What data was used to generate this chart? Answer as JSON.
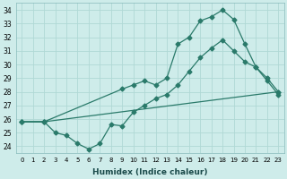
{
  "xlabel": "Humidex (Indice chaleur)",
  "bg_color": "#ceecea",
  "grid_color": "#b0d8d5",
  "line_color": "#2a7a6a",
  "xlim": [
    -0.5,
    23.5
  ],
  "ylim": [
    23.5,
    34.5
  ],
  "yticks": [
    24,
    25,
    26,
    27,
    28,
    29,
    30,
    31,
    32,
    33,
    34
  ],
  "xticks": [
    0,
    1,
    2,
    3,
    4,
    5,
    6,
    7,
    8,
    9,
    10,
    11,
    12,
    13,
    14,
    15,
    16,
    17,
    18,
    19,
    20,
    21,
    22,
    23
  ],
  "line1_x": [
    0,
    2,
    9,
    10,
    11,
    12,
    13,
    14,
    15,
    16,
    17,
    18,
    19,
    20,
    21,
    22,
    23
  ],
  "line1_y": [
    25.8,
    25.8,
    28.2,
    28.5,
    28.8,
    28.5,
    29.0,
    31.5,
    32.0,
    33.2,
    33.5,
    34.0,
    33.3,
    31.5,
    29.8,
    29.0,
    28.0
  ],
  "line2_x": [
    0,
    2,
    3,
    4,
    5,
    6,
    7,
    8,
    9,
    10,
    11,
    12,
    13,
    14,
    15,
    16,
    17,
    18,
    19,
    20,
    21,
    22,
    23
  ],
  "line2_y": [
    25.8,
    25.8,
    25.0,
    24.8,
    24.2,
    23.8,
    24.2,
    25.6,
    25.5,
    26.5,
    27.0,
    27.5,
    27.8,
    28.5,
    29.5,
    30.5,
    31.2,
    31.8,
    31.0,
    30.2,
    29.8,
    28.8,
    27.8
  ],
  "line3_x": [
    0,
    2,
    23
  ],
  "line3_y": [
    25.8,
    25.8,
    28.0
  ]
}
